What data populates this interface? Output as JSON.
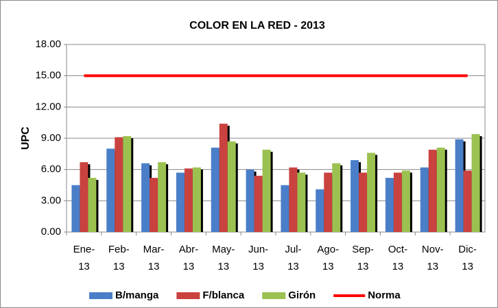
{
  "chart_data": {
    "type": "bar",
    "title": "COLOR EN LA RED - 2013",
    "y_label": "UPC",
    "categories": [
      "Ene-13",
      "Feb-13",
      "Mar-13",
      "Abr-13",
      "May-13",
      "Jun-13",
      "Jul-13",
      "Ago-13",
      "Sep-13",
      "Oct-13",
      "Nov-13",
      "Dic-13"
    ],
    "series": [
      {
        "name": "B/manga",
        "color": "#4a7ec8",
        "values": [
          4.5,
          8.0,
          6.6,
          5.7,
          8.1,
          6.0,
          4.5,
          4.1,
          6.9,
          5.2,
          6.2,
          8.9
        ]
      },
      {
        "name": "F/blanca",
        "color": "#c9423f",
        "values": [
          6.7,
          9.1,
          5.2,
          6.1,
          10.4,
          5.4,
          6.2,
          5.7,
          5.7,
          5.7,
          7.9,
          5.9
        ]
      },
      {
        "name": "Girón",
        "color": "#9bc150",
        "values": [
          5.2,
          9.2,
          6.7,
          6.2,
          8.7,
          7.9,
          5.7,
          6.6,
          7.6,
          5.9,
          8.1,
          9.4
        ]
      },
      {
        "name": "Norma",
        "color": "#ff0000",
        "type": "line",
        "values": [
          15,
          15,
          15,
          15,
          15,
          15,
          15,
          15,
          15,
          15,
          15,
          15
        ]
      }
    ],
    "ylim": [
      0,
      18
    ],
    "yticks": [
      {
        "value": 0,
        "label": "0.00"
      },
      {
        "value": 3,
        "label": "3.00"
      },
      {
        "value": 6,
        "label": "6.00"
      },
      {
        "value": 9,
        "label": "9.00"
      },
      {
        "value": 12,
        "label": "12.00"
      },
      {
        "value": 15,
        "label": "15.00"
      },
      {
        "value": 18,
        "label": "18.00"
      }
    ],
    "grid": true,
    "legend": "bottom"
  }
}
